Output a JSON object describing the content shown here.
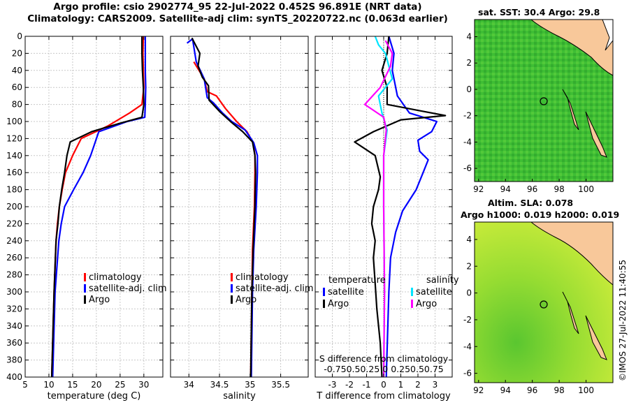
{
  "header": {
    "title1": "Argo profile: csio 2902774_95 22-Jul-2022 0.452S 96.891E (NRT data)",
    "title2": "Climatology: CARS2009. Satellite-adj clim: synTS_20220722.nc (0.063d earlier)"
  },
  "colors": {
    "clim": "#ff0000",
    "sat": "#0000ff",
    "argo": "#000000",
    "sat_s": "#00e5ff",
    "argo_s": "#ff00ff",
    "land": "#f8c89a"
  },
  "chart_data": [
    {
      "type": "line",
      "xlabel": "temperature (deg C)",
      "xlim": [
        5,
        34
      ],
      "ylim": [
        0,
        400
      ],
      "xticks": [
        5,
        10,
        15,
        20,
        25,
        30
      ],
      "yticks": [
        0,
        20,
        40,
        60,
        80,
        100,
        120,
        140,
        160,
        180,
        200,
        220,
        240,
        260,
        280,
        300,
        320,
        340,
        360,
        380,
        400
      ],
      "ytick_labels": [
        "0",
        "20",
        "40",
        "60",
        "80",
        "100",
        "120",
        "140",
        "160",
        "180",
        "200",
        "220",
        "240",
        "260",
        "280",
        "300",
        "320",
        "340",
        "360",
        "380",
        "400"
      ],
      "legend": [
        "climatology",
        "satellite-adj. clim",
        "Argo"
      ],
      "series": [
        {
          "name": "climatology",
          "color": "red",
          "points": [
            [
              29.9,
              0
            ],
            [
              29.8,
              20
            ],
            [
              29.9,
              40
            ],
            [
              30,
              60
            ],
            [
              29.6,
              80
            ],
            [
              27,
              90
            ],
            [
              22.5,
              105
            ],
            [
              16.8,
              120
            ],
            [
              15,
              140
            ],
            [
              13.5,
              160
            ],
            [
              12.8,
              180
            ],
            [
              12.2,
              200
            ],
            [
              11.8,
              220
            ],
            [
              11.5,
              240
            ],
            [
              11.1,
              300
            ],
            [
              10.6,
              400
            ]
          ]
        },
        {
          "name": "satellite-adj. clim",
          "color": "blue",
          "points": [
            [
              30.3,
              0
            ],
            [
              30.3,
              20
            ],
            [
              30.3,
              40
            ],
            [
              30.4,
              60
            ],
            [
              30.3,
              80
            ],
            [
              30.2,
              95
            ],
            [
              26.5,
              100
            ],
            [
              20.5,
              112
            ],
            [
              18.8,
              140
            ],
            [
              17.2,
              160
            ],
            [
              15.2,
              180
            ],
            [
              13.3,
              200
            ],
            [
              12.6,
              220
            ],
            [
              12.1,
              240
            ],
            [
              11.3,
              300
            ],
            [
              10.8,
              400
            ]
          ]
        },
        {
          "name": "Argo",
          "color": "black",
          "points": [
            [
              29.6,
              0
            ],
            [
              29.6,
              20
            ],
            [
              29.7,
              40
            ],
            [
              29.9,
              60
            ],
            [
              30,
              80
            ],
            [
              29.6,
              95
            ],
            [
              25,
              102
            ],
            [
              19,
              112
            ],
            [
              14.5,
              124
            ],
            [
              13.8,
              140
            ],
            [
              13.3,
              160
            ],
            [
              12.7,
              180
            ],
            [
              12.2,
              200
            ],
            [
              11.9,
              220
            ],
            [
              11.5,
              240
            ],
            [
              11.1,
              300
            ],
            [
              10.6,
              400
            ]
          ]
        }
      ]
    },
    {
      "type": "line",
      "xlabel": "salinity",
      "xlim": [
        33.7,
        35.95
      ],
      "ylim": [
        0,
        400
      ],
      "xticks": [
        34,
        34.5,
        35,
        35.5
      ],
      "legend": [
        "climatology",
        "satellite-adj. clim",
        "Argo"
      ],
      "series": [
        {
          "name": "climatology",
          "color": "red",
          "points": [
            [
              34.08,
              30
            ],
            [
              34.25,
              50
            ],
            [
              34.3,
              65
            ],
            [
              34.45,
              70
            ],
            [
              34.6,
              85
            ],
            [
              34.78,
              100
            ],
            [
              34.95,
              112
            ],
            [
              35.05,
              125
            ],
            [
              35.08,
              140
            ],
            [
              35.08,
              160
            ],
            [
              35.07,
              200
            ],
            [
              35.04,
              250
            ],
            [
              35.03,
              300
            ],
            [
              35.01,
              400
            ]
          ]
        },
        {
          "name": "satellite-adj. clim",
          "color": "blue",
          "points": [
            [
              33.97,
              8
            ],
            [
              34.06,
              3
            ],
            [
              34.12,
              30
            ],
            [
              34.25,
              50
            ],
            [
              34.3,
              72
            ],
            [
              34.4,
              78
            ],
            [
              34.55,
              90
            ],
            [
              34.7,
              100
            ],
            [
              34.92,
              110
            ],
            [
              35.06,
              125
            ],
            [
              35.12,
              140
            ],
            [
              35.12,
              160
            ],
            [
              35.1,
              200
            ],
            [
              35.06,
              250
            ],
            [
              35.04,
              300
            ],
            [
              35.02,
              400
            ]
          ]
        },
        {
          "name": "Argo",
          "color": "black",
          "points": [
            [
              34.05,
              2
            ],
            [
              34.18,
              20
            ],
            [
              34.15,
              35
            ],
            [
              34.22,
              48
            ],
            [
              34.32,
              58
            ],
            [
              34.33,
              75
            ],
            [
              34.5,
              88
            ],
            [
              34.68,
              100
            ],
            [
              34.88,
              112
            ],
            [
              35.04,
              124
            ],
            [
              35.08,
              140
            ],
            [
              35.09,
              160
            ],
            [
              35.08,
              200
            ],
            [
              35.05,
              250
            ],
            [
              35.03,
              300
            ],
            [
              35.01,
              400
            ]
          ]
        }
      ]
    },
    {
      "type": "line",
      "xlabel": "T difference from climatology",
      "top_xlabel": "S difference from climatology",
      "top_tick_labels": "-0.750.50.25 0 0.250.50.75",
      "xlim": [
        -4,
        4
      ],
      "ylim": [
        0,
        400
      ],
      "xticks": [
        -3,
        -2,
        -1,
        0,
        1,
        2,
        3
      ],
      "legend_titles": [
        "temperature",
        "salinity"
      ],
      "legend": [
        "satellite",
        "Argo",
        "satellite",
        "Argo"
      ],
      "series": [
        {
          "name": "temperature satellite",
          "color": "blue",
          "points": [
            [
              0.3,
              0
            ],
            [
              0.6,
              20
            ],
            [
              0.5,
              40
            ],
            [
              0.8,
              70
            ],
            [
              1.5,
              90
            ],
            [
              3.1,
              100
            ],
            [
              2.8,
              112
            ],
            [
              2,
              122
            ],
            [
              2.1,
              135
            ],
            [
              2.6,
              145
            ],
            [
              2.3,
              160
            ],
            [
              1.9,
              180
            ],
            [
              1.1,
              205
            ],
            [
              0.7,
              230
            ],
            [
              0.4,
              260
            ],
            [
              0.3,
              300
            ],
            [
              0.15,
              400
            ]
          ]
        },
        {
          "name": "temperature Argo",
          "color": "black",
          "points": [
            [
              0.3,
              0
            ],
            [
              0.2,
              20
            ],
            [
              -0.1,
              40
            ],
            [
              0.2,
              60
            ],
            [
              0.2,
              80
            ],
            [
              2,
              87
            ],
            [
              3.6,
              93
            ],
            [
              1,
              98
            ],
            [
              -0.6,
              112
            ],
            [
              -1.7,
              124
            ],
            [
              -0.5,
              140
            ],
            [
              -0.2,
              165
            ],
            [
              -0.3,
              180
            ],
            [
              -0.6,
              200
            ],
            [
              -0.7,
              220
            ],
            [
              -0.5,
              240
            ],
            [
              -0.6,
              260
            ],
            [
              -0.5,
              290
            ],
            [
              -0.4,
              320
            ],
            [
              -0.2,
              360
            ],
            [
              -0.1,
              400
            ]
          ]
        },
        {
          "name": "salinity satellite",
          "color": "cyan",
          "points": [
            [
              -0.5,
              0
            ],
            [
              -0.3,
              10
            ],
            [
              0.1,
              20
            ],
            [
              0.3,
              35
            ],
            [
              0.5,
              50
            ],
            [
              -0.3,
              70
            ],
            [
              -0.1,
              90
            ],
            [
              0.2,
              110
            ],
            [
              0,
              140
            ],
            [
              0,
              200
            ],
            [
              0.05,
              300
            ],
            [
              0,
              400
            ]
          ]
        },
        {
          "name": "salinity Argo",
          "color": "magenta",
          "points": [
            [
              0.1,
              5
            ],
            [
              0.5,
              20
            ],
            [
              0.4,
              35
            ],
            [
              -0.2,
              60
            ],
            [
              -1.1,
              80
            ],
            [
              0,
              95
            ],
            [
              0.15,
              110
            ],
            [
              0,
              140
            ],
            [
              0,
              200
            ],
            [
              0.05,
              300
            ],
            [
              0,
              400
            ]
          ]
        }
      ]
    }
  ],
  "maps": {
    "sst": {
      "title": "sat. SST: 30.4 Argo: 29.8",
      "xticks": [
        "92",
        "94",
        "96",
        "98",
        "100"
      ],
      "yticks": [
        "4",
        "2",
        "0",
        "-2",
        "-4",
        "-6"
      ]
    },
    "sla": {
      "title1": "Altim. SLA: 0.078",
      "title2": "Argo h1000: 0.019 h2000: 0.019",
      "xticks": [
        "92",
        "94",
        "96",
        "98",
        "100"
      ],
      "yticks": [
        "4",
        "2",
        "0",
        "-2",
        "-4",
        "-6"
      ]
    }
  },
  "footer": {
    "imos": "©IMOS 27-Jul-2022 11:40:55"
  }
}
